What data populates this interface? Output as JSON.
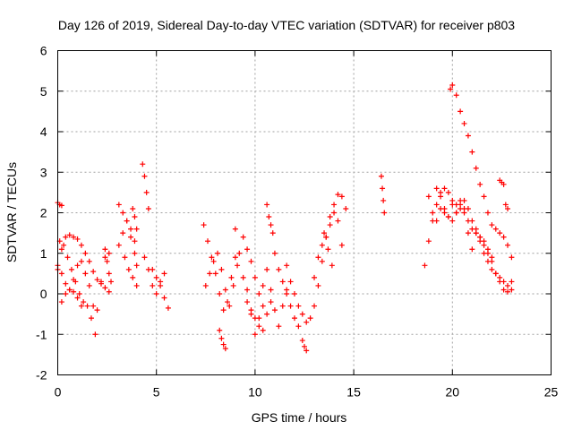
{
  "chart_data": {
    "type": "scatter",
    "title": "Day 126 of 2019, Sidereal Day-to-day VTEC variation (SDTVAR) for receiver p803",
    "xlabel": "GPS time / hours",
    "ylabel": "SDTVAR / TECUs",
    "xlim": [
      0,
      25
    ],
    "ylim": [
      -2,
      6
    ],
    "xticks": [
      "0",
      "5",
      "10",
      "15",
      "20",
      "25"
    ],
    "yticks": [
      "-2",
      "-1",
      "0",
      "1",
      "2",
      "3",
      "4",
      "5",
      "6"
    ],
    "grid": true,
    "marker": "+",
    "color": "#ff0000",
    "series": [
      {
        "name": "SDTVAR",
        "segments": [
          {
            "x": [
              0.0,
              0.1,
              0.2
            ],
            "y": [
              2.25,
              2.2,
              2.18
            ]
          },
          {
            "x": [
              0.0,
              0.2,
              0.4,
              0.6,
              0.8,
              1.0,
              1.2,
              1.4,
              1.6,
              1.8,
              2.0,
              2.2,
              2.4,
              2.6
            ],
            "y": [
              0.6,
              1.1,
              1.4,
              1.45,
              1.4,
              1.35,
              1.2,
              1.0,
              0.8,
              0.55,
              0.35,
              0.25,
              0.15,
              0.05
            ]
          },
          {
            "x": [
              0.0,
              0.2,
              0.4,
              0.6,
              0.8,
              1.0,
              1.2,
              1.4,
              1.6,
              1.8,
              2.0,
              2.2,
              2.4,
              2.6
            ],
            "y": [
              0.7,
              0.5,
              0.25,
              0.1,
              0.35,
              0.7,
              0.8,
              0.5,
              0.2,
              -0.3,
              -0.4,
              0.3,
              0.9,
              1.0
            ]
          },
          {
            "x": [
              0.1,
              0.3,
              0.5,
              0.7,
              0.9,
              1.1,
              1.3,
              1.5,
              1.7,
              1.9
            ],
            "y": [
              1.3,
              1.2,
              0.9,
              0.6,
              0.3,
              0.0,
              -0.2,
              -0.3,
              -0.6,
              -1.0
            ]
          },
          {
            "x": [
              0.2,
              0.4,
              0.6,
              0.8,
              1.0,
              1.2
            ],
            "y": [
              -0.2,
              0.0,
              0.1,
              0.05,
              -0.1,
              -0.3
            ]
          },
          {
            "x": [
              2.4,
              2.5,
              2.6,
              2.7
            ],
            "y": [
              1.1,
              0.8,
              0.5,
              0.3
            ]
          },
          {
            "x": [
              3.1,
              3.3,
              3.5,
              3.7,
              3.9,
              4.0
            ],
            "y": [
              2.2,
              2.0,
              1.8,
              1.4,
              1.0,
              0.7
            ]
          },
          {
            "x": [
              3.1,
              3.3,
              3.5,
              3.7,
              3.9
            ],
            "y": [
              1.2,
              1.5,
              1.8,
              1.6,
              1.3
            ]
          },
          {
            "x": [
              3.4,
              3.6,
              3.8,
              4.0
            ],
            "y": [
              0.9,
              0.6,
              0.4,
              0.2
            ]
          },
          {
            "x": [
              3.8,
              3.9,
              4.0
            ],
            "y": [
              2.1,
              1.9,
              1.6
            ]
          },
          {
            "x": [
              4.3,
              4.4,
              4.5,
              4.6
            ],
            "y": [
              3.2,
              2.9,
              2.5,
              2.1
            ]
          },
          {
            "x": [
              4.4,
              4.6,
              4.8,
              5.0,
              5.2,
              5.4,
              5.6
            ],
            "y": [
              0.9,
              0.6,
              0.2,
              0.0,
              0.3,
              0.5,
              -0.35
            ]
          },
          {
            "x": [
              4.8,
              5.0,
              5.2,
              5.4
            ],
            "y": [
              0.6,
              0.4,
              0.2,
              -0.1
            ]
          },
          {
            "x": [
              7.4,
              7.6,
              7.8,
              8.0,
              8.2,
              8.4,
              8.6,
              8.8,
              9.0
            ],
            "y": [
              1.7,
              1.3,
              0.9,
              0.5,
              0.0,
              -0.4,
              -0.2,
              0.4,
              0.9
            ]
          },
          {
            "x": [
              7.5,
              7.7,
              7.9,
              8.1,
              8.3,
              8.5,
              8.7,
              8.9,
              9.1
            ],
            "y": [
              0.2,
              0.5,
              0.8,
              1.0,
              0.6,
              0.1,
              -0.3,
              0.2,
              0.7
            ]
          },
          {
            "x": [
              8.2,
              8.3,
              8.4,
              8.5
            ],
            "y": [
              -0.9,
              -1.1,
              -1.25,
              -1.35
            ]
          },
          {
            "x": [
              9.0,
              9.2,
              9.4,
              9.6,
              9.8,
              10.0,
              10.2,
              10.4,
              10.6,
              10.8,
              11.0,
              11.2,
              11.4,
              11.6
            ],
            "y": [
              1.6,
              1.0,
              0.4,
              0.1,
              -0.5,
              -1.0,
              -0.6,
              0.2,
              0.6,
              0.1,
              -0.4,
              -0.8,
              -0.3,
              0.1
            ]
          },
          {
            "x": [
              9.4,
              9.6,
              9.8,
              10.0,
              10.2,
              10.4,
              10.6,
              10.8
            ],
            "y": [
              1.4,
              1.1,
              0.8,
              0.4,
              0.0,
              -0.3,
              -0.5,
              -0.2
            ]
          },
          {
            "x": [
              9.6,
              9.8,
              10.0,
              10.2,
              10.4
            ],
            "y": [
              -0.2,
              -0.4,
              -0.6,
              -0.8,
              -0.9
            ]
          },
          {
            "x": [
              10.6,
              10.7,
              10.8,
              10.9
            ],
            "y": [
              2.2,
              1.9,
              1.7,
              1.5
            ]
          },
          {
            "x": [
              11.0,
              11.2,
              11.4,
              11.6,
              11.8,
              12.0,
              12.2
            ],
            "y": [
              1.0,
              0.6,
              0.3,
              0.0,
              -0.3,
              -0.6,
              -0.8
            ]
          },
          {
            "x": [
              11.6,
              11.8,
              12.0,
              12.2,
              12.4,
              12.6
            ],
            "y": [
              0.7,
              0.3,
              0.0,
              -0.3,
              -0.5,
              -0.7
            ]
          },
          {
            "x": [
              12.4,
              12.5,
              12.6
            ],
            "y": [
              -1.15,
              -1.3,
              -1.4
            ]
          },
          {
            "x": [
              12.8,
              13.0,
              13.2,
              13.4,
              13.6,
              13.8,
              14.0,
              14.2,
              14.4,
              14.6
            ],
            "y": [
              -0.6,
              -0.3,
              0.2,
              0.8,
              1.4,
              1.9,
              2.2,
              2.45,
              2.4,
              2.1
            ]
          },
          {
            "x": [
              13.0,
              13.2,
              13.4,
              13.6,
              13.8,
              14.0,
              14.2,
              14.4
            ],
            "y": [
              0.4,
              0.9,
              1.2,
              1.4,
              1.7,
              2.0,
              1.8,
              1.2
            ]
          },
          {
            "x": [
              13.5,
              13.7,
              13.9
            ],
            "y": [
              1.5,
              1.1,
              0.7
            ]
          },
          {
            "x": [
              16.4,
              16.45,
              16.5,
              16.55
            ],
            "y": [
              2.9,
              2.6,
              2.3,
              2.0
            ]
          },
          {
            "x": [
              18.6,
              18.8,
              19.0,
              19.2,
              19.4,
              19.6,
              19.8,
              20.0,
              20.2,
              20.4,
              20.6,
              20.8,
              21.0
            ],
            "y": [
              0.7,
              1.3,
              1.8,
              2.2,
              2.5,
              2.6,
              2.5,
              2.3,
              2.2,
              2.3,
              2.1,
              1.5,
              1.1
            ]
          },
          {
            "x": [
              18.8,
              19.0,
              19.2,
              19.4,
              19.6,
              19.8,
              20.0,
              20.2,
              20.4,
              20.6,
              20.8,
              21.0,
              21.2,
              21.4,
              21.6,
              21.8,
              22.0,
              22.2,
              22.4,
              22.6,
              22.8,
              23.0
            ],
            "y": [
              2.4,
              2.0,
              1.8,
              2.1,
              2.0,
              1.9,
              2.2,
              2.0,
              2.2,
              2.3,
              2.1,
              1.8,
              1.6,
              1.4,
              1.2,
              1.0,
              0.8,
              0.5,
              0.3,
              0.1,
              0.05,
              0.1
            ]
          },
          {
            "x": [
              19.2,
              19.4,
              19.6,
              19.8,
              20.0,
              20.2,
              20.4,
              20.6,
              20.8,
              21.0,
              21.2,
              21.4,
              21.6,
              21.8,
              22.0,
              22.2,
              22.4,
              22.6,
              22.8,
              23.0
            ],
            "y": [
              2.6,
              2.4,
              2.1,
              1.9,
              1.8,
              2.0,
              2.1,
              2.0,
              1.8,
              1.6,
              1.5,
              1.3,
              1.0,
              0.8,
              0.6,
              0.5,
              0.4,
              0.3,
              0.2,
              0.3
            ]
          },
          {
            "x": [
              19.9,
              20.0,
              20.2,
              20.4,
              20.6,
              20.8,
              21.0,
              21.2,
              21.4,
              21.6,
              21.8,
              22.0,
              22.2,
              22.4,
              22.6,
              22.8,
              23.0
            ],
            "y": [
              5.05,
              5.15,
              4.9,
              4.5,
              4.2,
              3.9,
              3.5,
              3.1,
              2.7,
              2.4,
              2.0,
              1.7,
              1.6,
              1.5,
              1.4,
              1.2,
              0.9
            ]
          },
          {
            "x": [
              21.2,
              21.4,
              21.6,
              21.8,
              22.0
            ],
            "y": [
              1.5,
              1.4,
              1.3,
              1.1,
              0.9
            ]
          },
          {
            "x": [
              22.4,
              22.5,
              22.6,
              22.7,
              22.8
            ],
            "y": [
              2.8,
              2.75,
              2.7,
              2.2,
              2.1
            ]
          }
        ]
      }
    ]
  }
}
